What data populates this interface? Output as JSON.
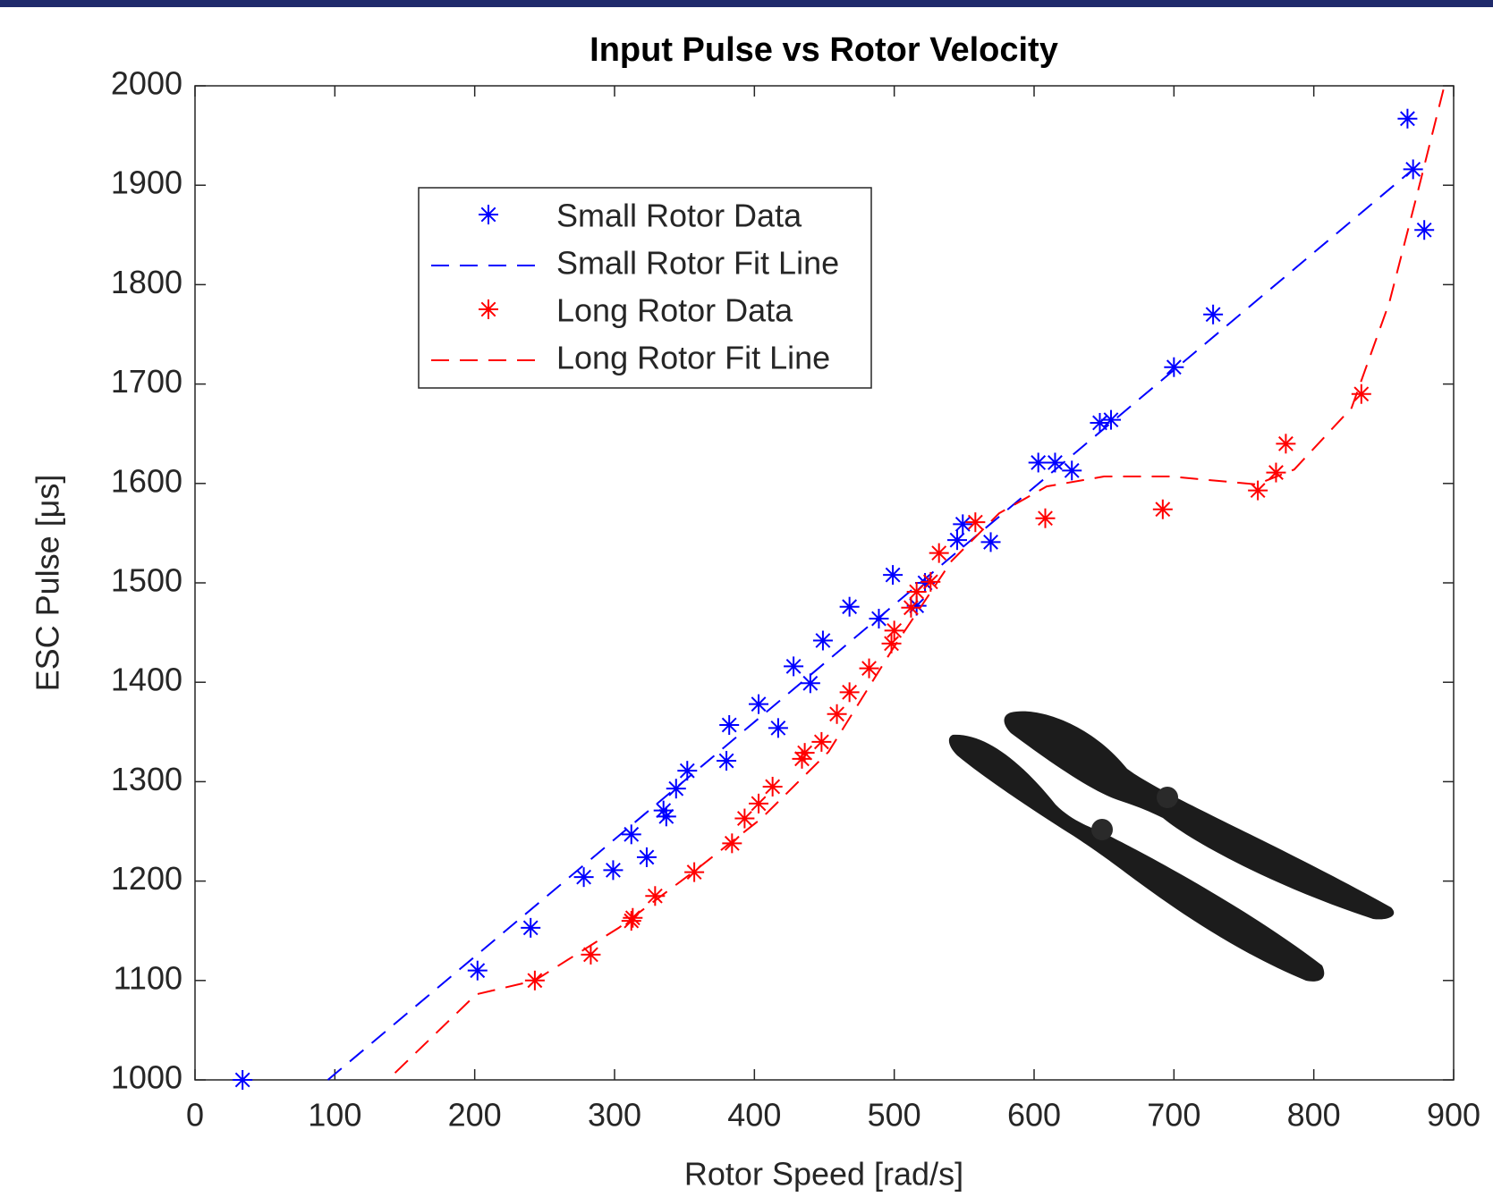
{
  "chart_data": {
    "type": "scatter",
    "title": "Input Pulse vs Rotor Velocity",
    "x_label": "Rotor Speed [rad/s]",
    "y_label": "ESC Pulse [μs]",
    "xlim": [
      0,
      900
    ],
    "ylim": [
      1000,
      2000
    ],
    "xticks": [
      0,
      100,
      200,
      300,
      400,
      500,
      600,
      700,
      800,
      900
    ],
    "yticks": [
      1000,
      1100,
      1200,
      1300,
      1400,
      1500,
      1600,
      1700,
      1800,
      1900,
      2000
    ],
    "legend": "upper left",
    "series": [
      {
        "name": "Small Rotor Data",
        "color": "#0000ff",
        "style": "markers",
        "x": [
          34,
          202,
          240,
          278,
          299,
          312,
          323,
          335,
          337,
          344,
          352,
          380,
          382,
          403,
          417,
          428,
          440,
          449,
          468,
          489,
          499,
          516,
          522,
          545,
          549,
          569,
          603,
          615,
          627,
          647,
          655,
          700,
          728,
          867,
          871,
          879
        ],
        "values": [
          1000,
          1110,
          1153,
          1204,
          1211,
          1247,
          1224,
          1271,
          1265,
          1293,
          1311,
          1321,
          1357,
          1378,
          1354,
          1416,
          1399,
          1442,
          1476,
          1464,
          1508,
          1477,
          1500,
          1543,
          1559,
          1541,
          1621,
          1621,
          1613,
          1661,
          1664,
          1717,
          1770,
          1967,
          1916,
          1855
        ]
      },
      {
        "name": "Small Rotor Fit Line",
        "color": "#0000ff",
        "style": "dashed",
        "x": [
          95,
          871
        ],
        "values": [
          1000,
          1916
        ]
      },
      {
        "name": "Long Rotor Data",
        "color": "#ff0000",
        "style": "markers",
        "x": [
          243,
          283,
          312,
          313,
          329,
          357,
          384,
          393,
          403,
          413,
          434,
          436,
          448,
          459,
          468,
          482,
          498,
          500,
          512,
          516,
          526,
          532,
          558,
          608,
          692,
          760,
          773,
          780,
          834
        ],
        "values": [
          1100,
          1126,
          1160,
          1163,
          1185,
          1209,
          1238,
          1263,
          1278,
          1295,
          1323,
          1329,
          1340,
          1368,
          1390,
          1414,
          1439,
          1452,
          1475,
          1491,
          1501,
          1530,
          1561,
          1565,
          1574,
          1593,
          1611,
          1640,
          1690
        ]
      },
      {
        "name": "Long Rotor Fit Line",
        "color": "#ff0000",
        "style": "dashed",
        "x": [
          143,
          201,
          243,
          303,
          357,
          405,
          453,
          500,
          541,
          575,
          609,
          650,
          698,
          759,
          786,
          827,
          854,
          875,
          893
        ],
        "values": [
          1007,
          1086,
          1100,
          1153,
          1210,
          1263,
          1330,
          1436,
          1522,
          1570,
          1597,
          1607,
          1607,
          1599,
          1614,
          1676,
          1782,
          1897,
          1998
        ]
      }
    ]
  }
}
